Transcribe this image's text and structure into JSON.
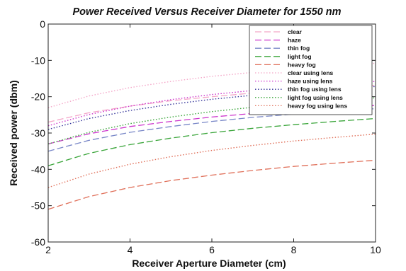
{
  "chart_data": {
    "type": "line",
    "title": "Power Received Versus Receiver Diameter for 1550 nm",
    "xlabel": "Receiver Aperture Diameter (cm)",
    "ylabel": "Received power (dbm)",
    "xlim": [
      2,
      10
    ],
    "ylim": [
      -60,
      0
    ],
    "xticks": [
      "2",
      "4",
      "6",
      "8",
      "10"
    ],
    "yticks": [
      "0",
      "-10",
      "-20",
      "-30",
      "-40",
      "-50",
      "-60"
    ],
    "grid": false,
    "legend_position": "top-right",
    "x": [
      2,
      3,
      4,
      5,
      6,
      7,
      8,
      9,
      10
    ],
    "series": [
      {
        "name": "clear",
        "style": "dashed",
        "color": "#f4a6c8",
        "values": [
          -27.0,
          -24.4,
          -22.6,
          -21.1,
          -20.0,
          -19.0,
          -18.2,
          -17.5,
          -16.9
        ]
      },
      {
        "name": "haze",
        "style": "dashed",
        "color": "#cc33cc",
        "values": [
          -33.0,
          -30.2,
          -28.2,
          -26.8,
          -25.6,
          -24.6,
          -23.8,
          -23.0,
          -22.4
        ]
      },
      {
        "name": "thin fog",
        "style": "dashed",
        "color": "#7a88c8",
        "values": [
          -35.0,
          -32.0,
          -29.8,
          -28.2,
          -26.8,
          -25.7,
          -24.8,
          -24.0,
          -23.3
        ]
      },
      {
        "name": "light fog",
        "style": "dashed",
        "color": "#3aa53a",
        "values": [
          -39.0,
          -35.6,
          -33.2,
          -31.4,
          -29.9,
          -28.7,
          -27.7,
          -26.8,
          -26.0
        ]
      },
      {
        "name": "heavy fog",
        "style": "dashed",
        "color": "#e0705a",
        "values": [
          -51.0,
          -47.5,
          -45.0,
          -43.1,
          -41.6,
          -40.3,
          -39.2,
          -38.3,
          -37.5
        ]
      },
      {
        "name": "clear using lens",
        "style": "dotted",
        "color": "#f4a6c8",
        "values": [
          -23.0,
          -19.8,
          -17.5,
          -15.8,
          -14.4,
          -13.3,
          -12.3,
          -11.5,
          -10.8
        ]
      },
      {
        "name": "haze using lens",
        "style": "dotted",
        "color": "#cc33cc",
        "values": [
          -28.0,
          -24.9,
          -22.6,
          -20.8,
          -19.4,
          -18.3,
          -17.3,
          -16.5,
          -15.8
        ]
      },
      {
        "name": "thin fog using lens",
        "style": "dotted",
        "color": "#333399",
        "values": [
          -29.0,
          -26.0,
          -23.8,
          -22.1,
          -20.7,
          -19.6,
          -18.7,
          -17.9,
          -17.2
        ]
      },
      {
        "name": "light fog using lens",
        "style": "dotted",
        "color": "#3aa53a",
        "values": [
          -33.0,
          -29.8,
          -27.4,
          -25.6,
          -24.1,
          -22.9,
          -21.9,
          -21.0,
          -20.3
        ]
      },
      {
        "name": "heavy fog using lens",
        "style": "dotted",
        "color": "#e0705a",
        "values": [
          -45.0,
          -41.3,
          -38.6,
          -36.5,
          -34.8,
          -33.4,
          -32.2,
          -31.2,
          -30.3
        ]
      }
    ]
  }
}
